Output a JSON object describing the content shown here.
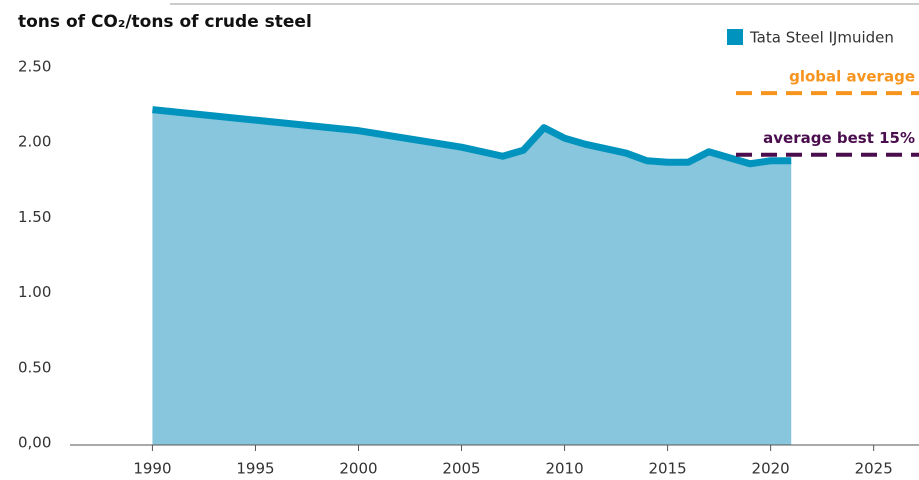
{
  "chart_data": {
    "type": "area",
    "title": "tons of CO₂/tons of crude steel",
    "x": [
      1990,
      1995,
      2000,
      2005,
      2007,
      2008,
      2009,
      2010,
      2011,
      2012,
      2013,
      2014,
      2015,
      2016,
      2017,
      2018,
      2019,
      2020,
      2021
    ],
    "series": [
      {
        "name": "Tata Steel IJmuiden",
        "color": "#0093bd",
        "fill": "#87c6dc",
        "values": [
          2.23,
          2.16,
          2.09,
          1.98,
          1.92,
          1.96,
          2.11,
          2.04,
          2.0,
          1.97,
          1.94,
          1.89,
          1.88,
          1.88,
          1.95,
          1.91,
          1.87,
          1.89,
          1.89
        ]
      }
    ],
    "reference_lines": [
      {
        "label": "global average",
        "value": 2.34,
        "color": "#f7941d"
      },
      {
        "label": "average best 15%",
        "value": 1.93,
        "color": "#4a0e4e"
      }
    ],
    "xlim": [
      1986,
      2027.2
    ],
    "xticks": [
      1990,
      1995,
      2000,
      2005,
      2010,
      2015,
      2020,
      2025
    ],
    "ylim": [
      0,
      2.5
    ],
    "yticks": [
      {
        "value": 0,
        "label": "0,00"
      },
      {
        "value": 0.5,
        "label": "0.50"
      },
      {
        "value": 1,
        "label": "1.00"
      },
      {
        "value": 1.5,
        "label": "1.50"
      },
      {
        "value": 2,
        "label": "2.00"
      },
      {
        "value": 2.5,
        "label": "2.50"
      }
    ],
    "legend": "top-right"
  }
}
